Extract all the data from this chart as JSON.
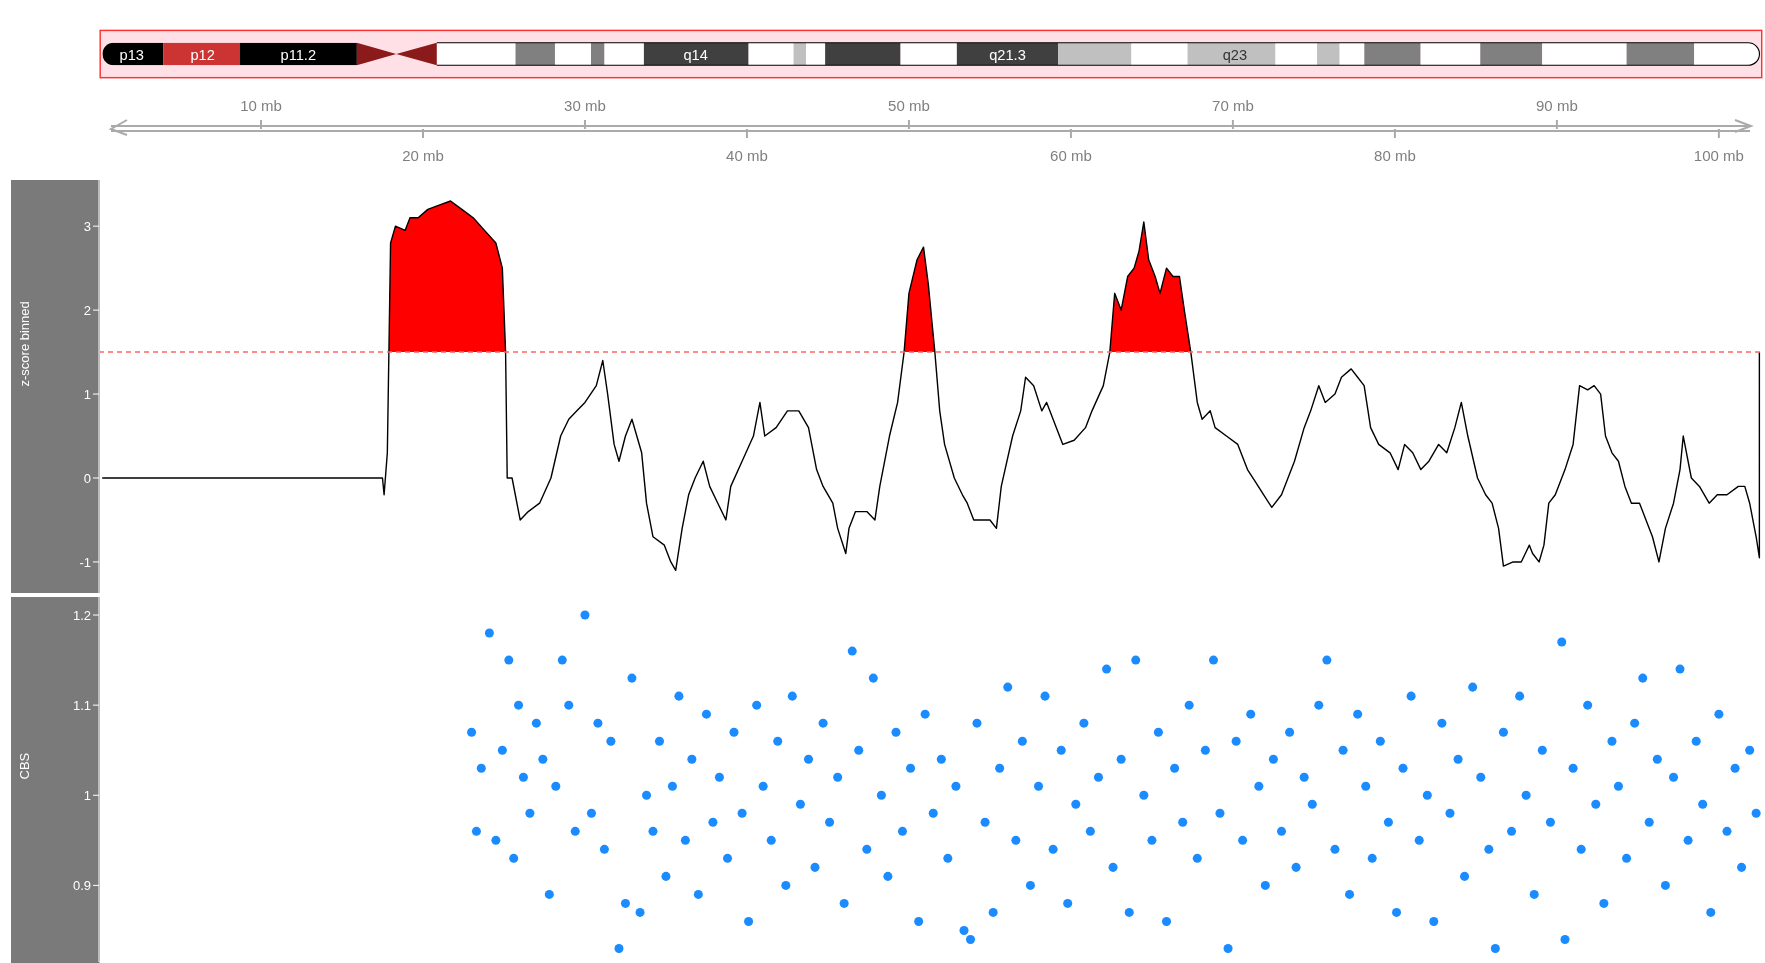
{
  "chart_data": [
    {
      "type": "other",
      "annotations": [
        "p13",
        "p12",
        "p11.2",
        "q14",
        "q21.3",
        "q23"
      ]
    },
    {
      "type": "line",
      "ylabel": "z-score binned",
      "xlim": [
        0,
        102.6
      ],
      "xticks": [
        {
          "value": 20,
          "label": "20 mb"
        },
        {
          "value": 40,
          "label": "40 mb"
        },
        {
          "value": 60,
          "label": "60 mb"
        },
        {
          "value": 80,
          "label": "80 mb"
        },
        {
          "value": 100,
          "label": "100 mb"
        }
      ],
      "x2lim": [
        0,
        102.6
      ],
      "x2ticks": [
        {
          "value": 10,
          "label": "10 mb"
        },
        {
          "value": 30,
          "label": "30 mb"
        },
        {
          "value": 50,
          "label": "50 mb"
        },
        {
          "value": 70,
          "label": "70 mb"
        },
        {
          "value": 90,
          "label": "90 mb"
        }
      ],
      "ylim": [
        -1.37,
        3.55
      ],
      "yticks": [
        -1,
        0,
        1,
        2,
        3
      ],
      "ref_lines": [
        {
          "axis": "y",
          "value": 1.5,
          "color": "#ff6666",
          "line_style": "dashed"
        }
      ],
      "series": [
        {
          "type": "line",
          "color": "#000000",
          "x": [
            0.2,
            17.5,
            17.6,
            17.8,
            18.0,
            18.3,
            18.9,
            19.2,
            19.7,
            20.3,
            21.0,
            21.7,
            22.4,
            23.1,
            23.8,
            24.5,
            24.9,
            25.1,
            25.2,
            25.5,
            26.0,
            26.5,
            27.2,
            27.9,
            28.5,
            29.0,
            29.5,
            30.0,
            30.7,
            31.1,
            31.4,
            31.8,
            32.1,
            32.5,
            32.9,
            33.5,
            33.8,
            34.2,
            34.9,
            35.3,
            35.6,
            36.0,
            36.4,
            36.8,
            37.3,
            37.7,
            38.2,
            38.7,
            39.0,
            39.7,
            40.4,
            40.8,
            41.1,
            41.8,
            42.5,
            43.2,
            43.8,
            44.3,
            44.7,
            45.3,
            45.6,
            46.1,
            46.3,
            46.7,
            47.4,
            47.9,
            48.2,
            48.8,
            49.3,
            49.7,
            50.0,
            50.5,
            50.9,
            51.2,
            51.6,
            51.9,
            52.2,
            52.8,
            53.3,
            53.6,
            54.0,
            54.5,
            55.0,
            55.4,
            55.7,
            56.4,
            56.9,
            57.2,
            57.7,
            58.2,
            58.5,
            59.1,
            59.5,
            60.2,
            60.9,
            61.3,
            62.0,
            62.4,
            62.7,
            63.1,
            63.5,
            63.9,
            64.2,
            64.5,
            64.8,
            65.2,
            65.5,
            65.9,
            66.3,
            66.7,
            67.0,
            67.4,
            67.8,
            68.1,
            68.6,
            68.9,
            69.6,
            70.3,
            70.9,
            71.4,
            71.9,
            72.4,
            73.0,
            73.4,
            73.8,
            74.4,
            74.8,
            75.3,
            75.7,
            76.3,
            76.7,
            77.3,
            77.7,
            78.1,
            78.5,
            79.0,
            79.7,
            80.2,
            80.6,
            81.1,
            81.6,
            82.1,
            82.7,
            83.2,
            83.7,
            84.1,
            84.5,
            85.1,
            85.6,
            86.0,
            86.4,
            86.7,
            87.3,
            87.8,
            88.3,
            88.5,
            88.9,
            89.2,
            89.5,
            89.9,
            90.5,
            91.0,
            91.4,
            91.9,
            92.3,
            92.7,
            93.0,
            93.4,
            93.8,
            94.2,
            94.6,
            95.1,
            95.5,
            95.9,
            96.3,
            96.7,
            97.2,
            97.6,
            97.8,
            98.3,
            98.8,
            99.4,
            99.9,
            100.5,
            101.2,
            101.6,
            101.9,
            102.3,
            102.5,
            102.5
          ],
          "values": [
            0,
            0,
            -0.2,
            0.3,
            2.8,
            3.0,
            2.95,
            3.1,
            3.1,
            3.2,
            3.25,
            3.3,
            3.2,
            3.1,
            2.95,
            2.8,
            2.5,
            1.5,
            0,
            0,
            -0.5,
            -0.4,
            -0.3,
            0,
            0.5,
            0.7,
            0.8,
            0.9,
            1.1,
            1.4,
            1.0,
            0.4,
            0.2,
            0.5,
            0.7,
            0.3,
            -0.3,
            -0.7,
            -0.8,
            -1.0,
            -1.1,
            -0.6,
            -0.2,
            0,
            0.2,
            -0.1,
            -0.3,
            -0.5,
            -0.1,
            0.2,
            0.5,
            0.9,
            0.5,
            0.6,
            0.8,
            0.8,
            0.6,
            0.1,
            -0.1,
            -0.3,
            -0.6,
            -0.9,
            -0.6,
            -0.4,
            -0.4,
            -0.5,
            -0.1,
            0.5,
            0.9,
            1.5,
            2.2,
            2.6,
            2.75,
            2.3,
            1.5,
            0.8,
            0.4,
            0,
            -0.2,
            -0.3,
            -0.5,
            -0.5,
            -0.5,
            -0.6,
            -0.1,
            0.5,
            0.8,
            1.2,
            1.1,
            0.8,
            0.9,
            0.6,
            0.4,
            0.45,
            0.6,
            0.8,
            1.1,
            1.5,
            2.2,
            2.0,
            2.4,
            2.5,
            2.7,
            3.05,
            2.6,
            2.4,
            2.2,
            2.5,
            2.4,
            2.4,
            2.0,
            1.5,
            0.9,
            0.7,
            0.8,
            0.6,
            0.5,
            0.4,
            0.1,
            -0.05,
            -0.2,
            -0.35,
            -0.2,
            0,
            0.2,
            0.6,
            0.8,
            1.1,
            0.9,
            1.0,
            1.2,
            1.3,
            1.2,
            1.1,
            0.6,
            0.4,
            0.3,
            0.1,
            0.4,
            0.3,
            0.1,
            0.2,
            0.4,
            0.3,
            0.6,
            0.9,
            0.5,
            0,
            -0.2,
            -0.3,
            -0.6,
            -1.05,
            -1.0,
            -1.0,
            -0.8,
            -0.9,
            -1.0,
            -0.8,
            -0.3,
            -0.2,
            0.1,
            0.4,
            1.1,
            1.05,
            1.1,
            1.0,
            0.5,
            0.3,
            0.2,
            -0.1,
            -0.3,
            -0.3,
            -0.5,
            -0.7,
            -1.0,
            -0.6,
            -0.3,
            0.1,
            0.5,
            0,
            -0.1,
            -0.3,
            -0.2,
            -0.2,
            -0.1,
            -0.1,
            -0.3,
            -0.7,
            -0.95,
            1.5
          ]
        },
        {
          "type": "area",
          "color": "#ff0000",
          "x": [
            17.9,
            18.0,
            18.3,
            18.9,
            19.2,
            19.7,
            20.3,
            21.0,
            21.7,
            22.4,
            23.1,
            23.8,
            24.5,
            24.9,
            25.1,
            30,
            49.7,
            50.0,
            50.5,
            50.9,
            51.2,
            51.6,
            55,
            62.4,
            62.7,
            63.1,
            63.5,
            63.9,
            64.2,
            64.5,
            64.8,
            65.2,
            65.5,
            65.9,
            66.3,
            66.7,
            67.0,
            67.4
          ],
          "values": [
            1.5,
            2.8,
            3.0,
            2.95,
            3.1,
            3.1,
            3.2,
            3.25,
            3.3,
            3.2,
            3.1,
            2.95,
            2.8,
            2.5,
            1.5,
            null,
            1.5,
            2.2,
            2.6,
            2.75,
            2.3,
            1.5,
            null,
            1.5,
            2.2,
            2.0,
            2.4,
            2.5,
            2.7,
            3.05,
            2.6,
            2.4,
            2.2,
            2.5,
            2.4,
            2.4,
            2.0,
            1.5
          ]
        }
      ]
    },
    {
      "type": "scatter",
      "ylabel": "CBS",
      "xlim": [
        0,
        102.6
      ],
      "ylim": [
        0.815,
        1.22
      ],
      "yticks": [
        0.9,
        1,
        1.1,
        1.2
      ],
      "tick_labels": "y",
      "marker": "circle",
      "color": "#1a8cff",
      "x": [
        23.0,
        23.3,
        23.6,
        24.1,
        24.5,
        24.9,
        25.3,
        25.6,
        25.9,
        26.2,
        26.6,
        27.0,
        27.4,
        27.8,
        28.2,
        28.6,
        29.0,
        29.4,
        30.0,
        30.4,
        30.8,
        31.2,
        31.6,
        32.1,
        32.5,
        32.9,
        33.4,
        33.8,
        34.2,
        34.6,
        35.0,
        35.4,
        35.8,
        36.2,
        36.6,
        37.0,
        37.5,
        37.9,
        38.3,
        38.8,
        39.2,
        39.7,
        40.1,
        40.6,
        41.0,
        41.5,
        41.9,
        42.4,
        42.8,
        43.3,
        43.8,
        44.2,
        44.7,
        45.1,
        45.6,
        46.0,
        46.5,
        46.9,
        47.4,
        47.8,
        48.3,
        48.7,
        49.2,
        49.6,
        50.1,
        50.6,
        51.0,
        51.5,
        52.0,
        52.4,
        52.9,
        53.4,
        53.8,
        54.2,
        54.7,
        55.2,
        55.6,
        56.1,
        56.6,
        57.0,
        57.5,
        58.0,
        58.4,
        58.9,
        59.4,
        59.8,
        60.3,
        60.8,
        61.2,
        61.7,
        62.2,
        62.6,
        63.1,
        63.6,
        64.0,
        64.5,
        65.0,
        65.4,
        65.9,
        66.4,
        66.9,
        67.3,
        67.8,
        68.3,
        68.8,
        69.2,
        69.7,
        70.2,
        70.6,
        71.1,
        71.6,
        72.0,
        72.5,
        73.0,
        73.5,
        73.9,
        74.4,
        74.9,
        75.3,
        75.8,
        76.3,
        76.8,
        77.2,
        77.7,
        78.2,
        78.6,
        79.1,
        79.6,
        80.1,
        80.5,
        81.0,
        81.5,
        82.0,
        82.4,
        82.9,
        83.4,
        83.9,
        84.3,
        84.8,
        85.3,
        85.8,
        86.2,
        86.7,
        87.2,
        87.7,
        88.1,
        88.6,
        89.1,
        89.6,
        90.3,
        90.5,
        91.0,
        91.5,
        91.9,
        92.4,
        92.9,
        93.4,
        93.8,
        94.3,
        94.8,
        95.3,
        95.7,
        96.2,
        96.7,
        97.2,
        97.6,
        98.1,
        98.6,
        99.0,
        99.5,
        100.0,
        100.5,
        101.0,
        101.4,
        101.9,
        102.3
      ],
      "values": [
        1.07,
        0.96,
        1.03,
        1.18,
        0.95,
        1.05,
        1.15,
        0.93,
        1.1,
        1.02,
        0.98,
        1.08,
        1.04,
        0.89,
        1.01,
        1.15,
        1.1,
        0.96,
        1.2,
        0.98,
        1.08,
        0.94,
        1.06,
        0.83,
        0.88,
        1.13,
        0.87,
        1.0,
        0.96,
        1.06,
        0.91,
        1.01,
        1.11,
        0.95,
        1.04,
        0.89,
        1.09,
        0.97,
        1.02,
        0.93,
        1.07,
        0.98,
        0.86,
        1.1,
        1.01,
        0.95,
        1.06,
        0.9,
        1.11,
        0.99,
        1.04,
        0.92,
        1.08,
        0.97,
        1.02,
        0.88,
        1.16,
        1.05,
        0.94,
        1.13,
        1.0,
        0.91,
        1.07,
        0.96,
        1.03,
        0.86,
        1.09,
        0.98,
        1.04,
        0.93,
        1.01,
        0.85,
        0.84,
        1.08,
        0.97,
        0.87,
        1.03,
        1.12,
        0.95,
        1.06,
        0.9,
        1.01,
        1.11,
        0.94,
        1.05,
        0.88,
        0.99,
        1.08,
        0.96,
        1.02,
        1.14,
        0.92,
        1.04,
        0.87,
        1.15,
        1.0,
        0.95,
        1.07,
        0.86,
        1.03,
        0.97,
        1.1,
        0.93,
        1.05,
        1.15,
        0.98,
        0.83,
        1.06,
        0.95,
        1.09,
        1.01,
        0.9,
        1.04,
        0.96,
        1.07,
        0.92,
        1.02,
        0.99,
        1.1,
        1.15,
        0.94,
        1.05,
        0.89,
        1.09,
        1.01,
        0.93,
        1.06,
        0.97,
        0.87,
        1.03,
        1.11,
        0.95,
        1.0,
        0.86,
        1.08,
        0.98,
        1.04,
        0.91,
        1.12,
        1.02,
        0.94,
        0.83,
        1.07,
        0.96,
        1.11,
        1.0,
        0.89,
        1.05,
        0.97,
        1.17,
        0.84,
        1.03,
        0.94,
        1.1,
        0.99,
        0.88,
        1.06,
        1.01,
        0.93,
        1.08,
        1.13,
        0.97,
        1.04,
        0.9,
        1.02,
        1.14,
        0.95,
        1.06,
        0.99,
        0.87,
        1.09,
        0.96,
        1.03,
        0.92,
        1.05,
        0.98
      ]
    }
  ]
}
